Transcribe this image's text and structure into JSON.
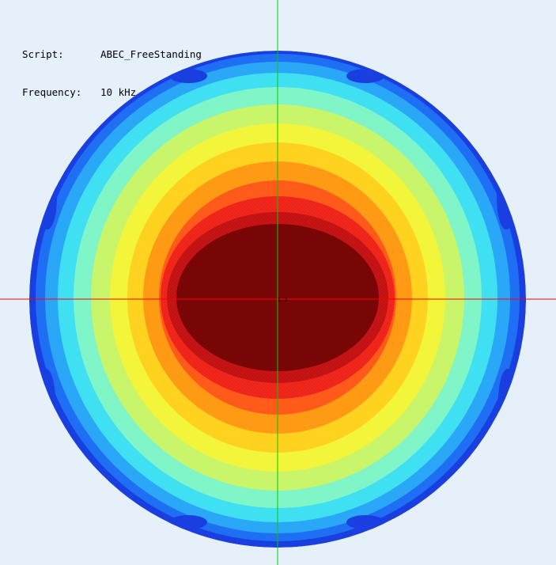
{
  "info": {
    "script_label": "Script:",
    "script_value": "ABEC_FreeStanding",
    "frequency_label": "Frequency:",
    "frequency_value": "10 kHz"
  },
  "plot": {
    "center_marker": "1.2",
    "background_color": "#e6f0fb",
    "x_axis_color": "#ff0000",
    "y_axis_color": "#00cc00",
    "colormap": [
      "#1a3fe0",
      "#1f6ff5",
      "#2aa7f7",
      "#3fe0f2",
      "#7ff5c8",
      "#c8f56a",
      "#f2f53a",
      "#ffd21f",
      "#ff9a14",
      "#ff5a1a",
      "#f4261c",
      "#c81414",
      "#7c0505"
    ]
  }
}
